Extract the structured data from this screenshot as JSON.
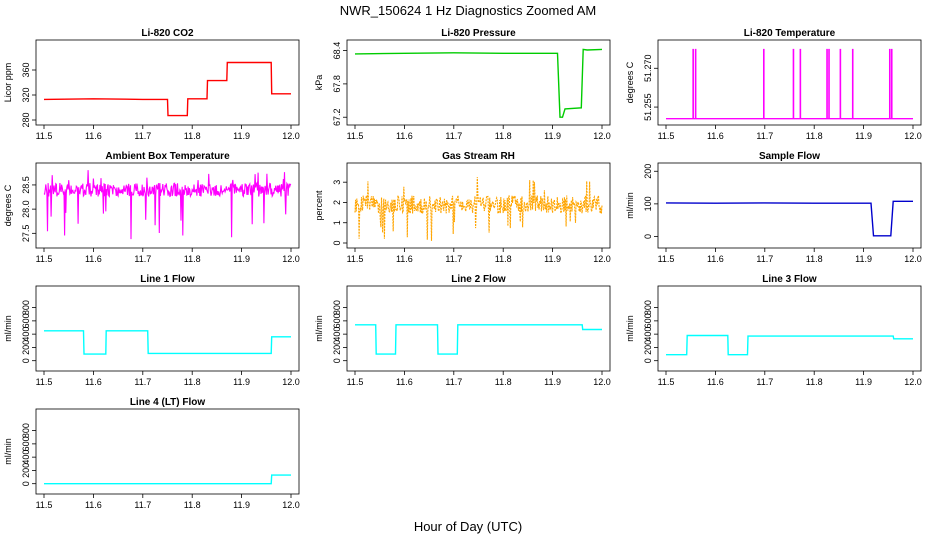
{
  "figure": {
    "title": "NWR_150624  1 Hz Diagnostics Zoomed AM",
    "xlabel": "Hour of Day (UTC)"
  },
  "chart_data": [
    {
      "id": "co2",
      "type": "line",
      "title": "Li-820 CO2",
      "ylabel": "Licor ppm",
      "color": "#ff0000",
      "xlim": [
        11.5,
        12.0
      ],
      "ylim": [
        280,
        400
      ],
      "xticks": [
        "11.5",
        "11.6",
        "11.7",
        "11.8",
        "11.9",
        "12.0"
      ],
      "yticks": [
        "280",
        "320",
        "360"
      ],
      "x": [
        11.5,
        11.6,
        11.7,
        11.75,
        11.751,
        11.79,
        11.791,
        11.83,
        11.831,
        11.87,
        11.871,
        11.96,
        11.961,
        12.0
      ],
      "y": [
        313,
        314,
        313,
        313,
        287,
        287,
        314,
        314,
        343,
        343,
        372,
        372,
        322,
        322
      ]
    },
    {
      "id": "pressure",
      "type": "line",
      "title": "Li-820 Pressure",
      "ylabel": "kPa",
      "color": "#00cc00",
      "xlim": [
        11.5,
        12.0
      ],
      "ylim": [
        67.15,
        68.5
      ],
      "xticks": [
        "11.5",
        "11.6",
        "11.7",
        "11.8",
        "11.9",
        "12.0"
      ],
      "yticks": [
        "67.2",
        "67.8",
        "68.4"
      ],
      "x": [
        11.5,
        11.6,
        11.7,
        11.8,
        11.91,
        11.915,
        11.92,
        11.925,
        11.958,
        11.962,
        11.97,
        12.0
      ],
      "y": [
        68.34,
        68.35,
        68.36,
        68.35,
        68.35,
        67.2,
        67.2,
        67.35,
        67.37,
        68.42,
        68.41,
        68.42
      ]
    },
    {
      "id": "temperature",
      "type": "line",
      "title": "Li-820 Temperature",
      "ylabel": "degrees C",
      "color": "#ff00ff",
      "xlim": [
        11.5,
        12.0
      ],
      "ylim": [
        51.25,
        51.279
      ],
      "xticks": [
        "11.5",
        "11.6",
        "11.7",
        "11.8",
        "11.9",
        "12.0"
      ],
      "yticks": [
        "51.255",
        "51.270"
      ],
      "base": 51.2505,
      "spike": 51.2775,
      "spikes": [
        11.555,
        11.56,
        11.698,
        11.758,
        11.772,
        11.826,
        11.83,
        11.853,
        11.878,
        11.953,
        11.957
      ]
    },
    {
      "id": "ambient",
      "type": "noise",
      "title": "Ambient Box Temperature",
      "ylabel": "degrees C",
      "color": "#ff00ff",
      "xlim": [
        11.5,
        12.0
      ],
      "ylim": [
        27.3,
        28.85
      ],
      "xticks": [
        "11.5",
        "11.6",
        "11.7",
        "11.8",
        "11.9",
        "12.0"
      ],
      "yticks": [
        "27.5",
        "28.0",
        "28.5"
      ],
      "center": 28.4,
      "amp": 0.14,
      "spike_min": 27.35
    },
    {
      "id": "rh",
      "type": "noise",
      "title": "Gas Stream RH",
      "ylabel": "percent",
      "color": "#ffa500",
      "xlim": [
        11.5,
        12.0
      ],
      "ylim": [
        0,
        3.7
      ],
      "xticks": [
        "11.5",
        "11.6",
        "11.7",
        "11.8",
        "11.9",
        "12.0"
      ],
      "yticks": [
        "0",
        "1",
        "2",
        "3"
      ],
      "center": 1.9,
      "amp": 0.45,
      "spike_min": 0.1
    },
    {
      "id": "sample",
      "type": "line",
      "title": "Sample Flow",
      "ylabel": "ml/min",
      "color": "#0000cc",
      "xlim": [
        11.5,
        12.0
      ],
      "ylim": [
        -20,
        210
      ],
      "xticks": [
        "11.5",
        "11.6",
        "11.7",
        "11.8",
        "11.9",
        "12.0"
      ],
      "yticks": [
        "0",
        "100",
        "200"
      ],
      "x": [
        11.5,
        11.6,
        11.7,
        11.8,
        11.915,
        11.92,
        11.955,
        11.96,
        12.0
      ],
      "y": [
        103,
        102,
        103,
        102,
        102,
        2,
        2,
        108,
        108
      ]
    },
    {
      "id": "line1",
      "type": "line",
      "title": "Line 1 Flow",
      "ylabel": "ml/min",
      "color": "#00ffff",
      "xlim": [
        11.5,
        12.0
      ],
      "ylim": [
        -80,
        1050
      ],
      "xticks": [
        "11.5",
        "11.6",
        "11.7",
        "11.8",
        "11.9",
        "12.0"
      ],
      "yticks": [
        "0",
        "200",
        "400",
        "600",
        "800"
      ],
      "x": [
        11.5,
        11.58,
        11.581,
        11.625,
        11.626,
        11.71,
        11.711,
        11.96,
        11.961,
        12.0
      ],
      "y": [
        450,
        450,
        100,
        100,
        450,
        450,
        110,
        110,
        360,
        360
      ]
    },
    {
      "id": "line2",
      "type": "line",
      "title": "Line 2 Flow",
      "ylabel": "ml/min",
      "color": "#00ffff",
      "xlim": [
        11.5,
        12.0
      ],
      "ylim": [
        -80,
        1050
      ],
      "xticks": [
        "11.5",
        "11.6",
        "11.7",
        "11.8",
        "11.9",
        "12.0"
      ],
      "yticks": [
        "0",
        "200",
        "400",
        "600",
        "800"
      ],
      "x": [
        11.5,
        11.542,
        11.543,
        11.582,
        11.583,
        11.667,
        11.668,
        11.707,
        11.708,
        11.96,
        11.961,
        12.0
      ],
      "y": [
        540,
        540,
        100,
        100,
        540,
        540,
        100,
        100,
        540,
        540,
        470,
        470
      ]
    },
    {
      "id": "line3",
      "type": "line",
      "title": "Line 3 Flow",
      "ylabel": "ml/min",
      "color": "#00ffff",
      "xlim": [
        11.5,
        12.0
      ],
      "ylim": [
        -80,
        1050
      ],
      "xticks": [
        "11.5",
        "11.6",
        "11.7",
        "11.8",
        "11.9",
        "12.0"
      ],
      "yticks": [
        "0",
        "200",
        "400",
        "600",
        "800"
      ],
      "x": [
        11.5,
        11.542,
        11.543,
        11.625,
        11.626,
        11.665,
        11.666,
        11.96,
        11.961,
        12.0
      ],
      "y": [
        90,
        90,
        380,
        380,
        90,
        90,
        370,
        370,
        330,
        330
      ]
    },
    {
      "id": "line4",
      "type": "line",
      "title": "Line 4 (LT) Flow",
      "ylabel": "ml/min",
      "color": "#00ffff",
      "xlim": [
        11.5,
        12.0
      ],
      "ylim": [
        -80,
        1050
      ],
      "xticks": [
        "11.5",
        "11.6",
        "11.7",
        "11.8",
        "11.9",
        "12.0"
      ],
      "yticks": [
        "0",
        "200",
        "400",
        "600",
        "800"
      ],
      "x": [
        11.5,
        11.96,
        11.961,
        12.0
      ],
      "y": [
        0,
        0,
        130,
        130
      ]
    }
  ]
}
